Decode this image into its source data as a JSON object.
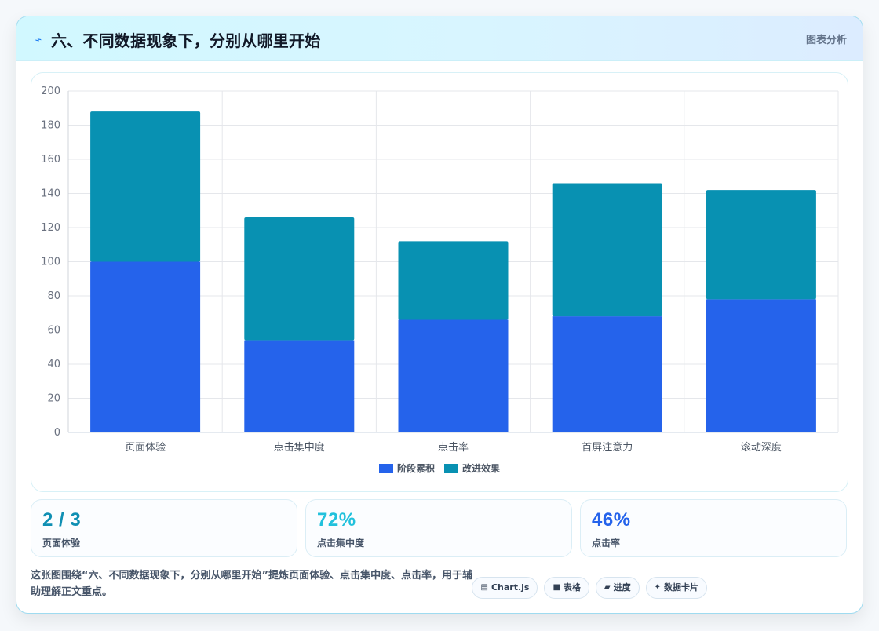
{
  "header": {
    "title": "六、不同数据现象下，分别从哪里开始",
    "tag": "图表分析",
    "icon": "bolt-icon"
  },
  "chart_data": {
    "type": "bar",
    "stacked": true,
    "categories": [
      "页面体验",
      "点击集中度",
      "点击率",
      "首屏注意力",
      "滚动深度"
    ],
    "series": [
      {
        "name": "阶段累积",
        "values": [
          100,
          54,
          66,
          68,
          78
        ],
        "color": "#2563eb"
      },
      {
        "name": "改进效果",
        "values": [
          88,
          72,
          46,
          78,
          64
        ],
        "color": "#0891b2"
      }
    ],
    "ylim": [
      0,
      200
    ],
    "yticks": [
      0,
      20,
      40,
      60,
      80,
      100,
      120,
      140,
      160,
      180,
      200
    ],
    "grid": true,
    "legend_position": "bottom-center"
  },
  "metrics": [
    {
      "value": "2 / 3",
      "label": "页面体验",
      "color": "#0f8fb3"
    },
    {
      "value": "72%",
      "label": "点击集中度",
      "color": "#22c1dc"
    },
    {
      "value": "46%",
      "label": "点击率",
      "color": "#2563eb"
    }
  ],
  "footer": {
    "text": "这张图围绕“六、不同数据现象下，分别从哪里开始”提炼页面体验、点击集中度、点击率，用于辅助理解正文重点。"
  },
  "tags": [
    {
      "icon": "chart-icon",
      "label": "Chart.js"
    },
    {
      "icon": "table-icon",
      "label": "表格"
    },
    {
      "icon": "progress-icon",
      "label": "进度"
    },
    {
      "icon": "card-icon",
      "label": "数据卡片"
    }
  ]
}
